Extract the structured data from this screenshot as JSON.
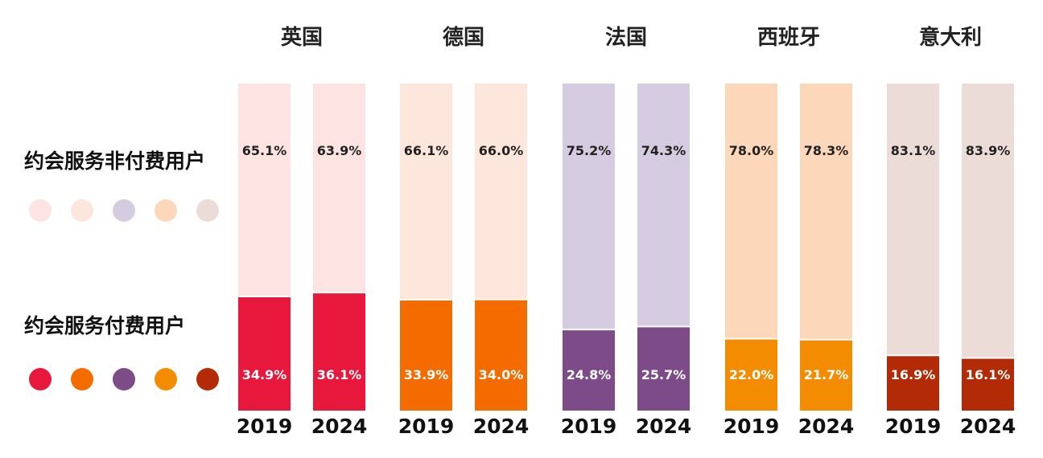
{
  "legend": {
    "unpaid_label": "约会服务非付费用户",
    "paid_label": "约会服务付费用户"
  },
  "colors": {
    "unpaid": [
      "#fde3e1",
      "#fde6dc",
      "#d6cce1",
      "#fdd7b9",
      "#ecdcd8"
    ],
    "paid": [
      "#e8173c",
      "#f46c00",
      "#7d4b88",
      "#f38c00",
      "#b22b06"
    ]
  },
  "chart_data": {
    "type": "bar",
    "stacked": true,
    "percent_stacked": true,
    "groups": [
      {
        "country": "英国",
        "bars": [
          {
            "year": "2019",
            "unpaid": 65.1,
            "unpaid_label": "65.1%",
            "paid": 34.9,
            "paid_label": "34.9%"
          },
          {
            "year": "2024",
            "unpaid": 63.9,
            "unpaid_label": "63.9%",
            "paid": 36.1,
            "paid_label": "36.1%"
          }
        ]
      },
      {
        "country": "德国",
        "bars": [
          {
            "year": "2019",
            "unpaid": 66.1,
            "unpaid_label": "66.1%",
            "paid": 33.9,
            "paid_label": "33.9%"
          },
          {
            "year": "2024",
            "unpaid": 66.0,
            "unpaid_label": "66.0%",
            "paid": 34.0,
            "paid_label": "34.0%"
          }
        ]
      },
      {
        "country": "法国",
        "bars": [
          {
            "year": "2019",
            "unpaid": 75.2,
            "unpaid_label": "75.2%",
            "paid": 24.8,
            "paid_label": "24.8%"
          },
          {
            "year": "2024",
            "unpaid": 74.3,
            "unpaid_label": "74.3%",
            "paid": 25.7,
            "paid_label": "25.7%"
          }
        ]
      },
      {
        "country": "西班牙",
        "bars": [
          {
            "year": "2019",
            "unpaid": 78.0,
            "unpaid_label": "78.0%",
            "paid": 22.0,
            "paid_label": "22.0%"
          },
          {
            "year": "2024",
            "unpaid": 78.3,
            "unpaid_label": "78.3%",
            "paid": 21.7,
            "paid_label": "21.7%"
          }
        ]
      },
      {
        "country": "意大利",
        "bars": [
          {
            "year": "2019",
            "unpaid": 83.1,
            "unpaid_label": "83.1%",
            "paid": 16.9,
            "paid_label": "16.9%"
          },
          {
            "year": "2024",
            "unpaid": 83.9,
            "unpaid_label": "83.9%",
            "paid": 16.1,
            "paid_label": "16.1%"
          }
        ]
      }
    ],
    "ylim": [
      0,
      100
    ],
    "grid": false
  }
}
